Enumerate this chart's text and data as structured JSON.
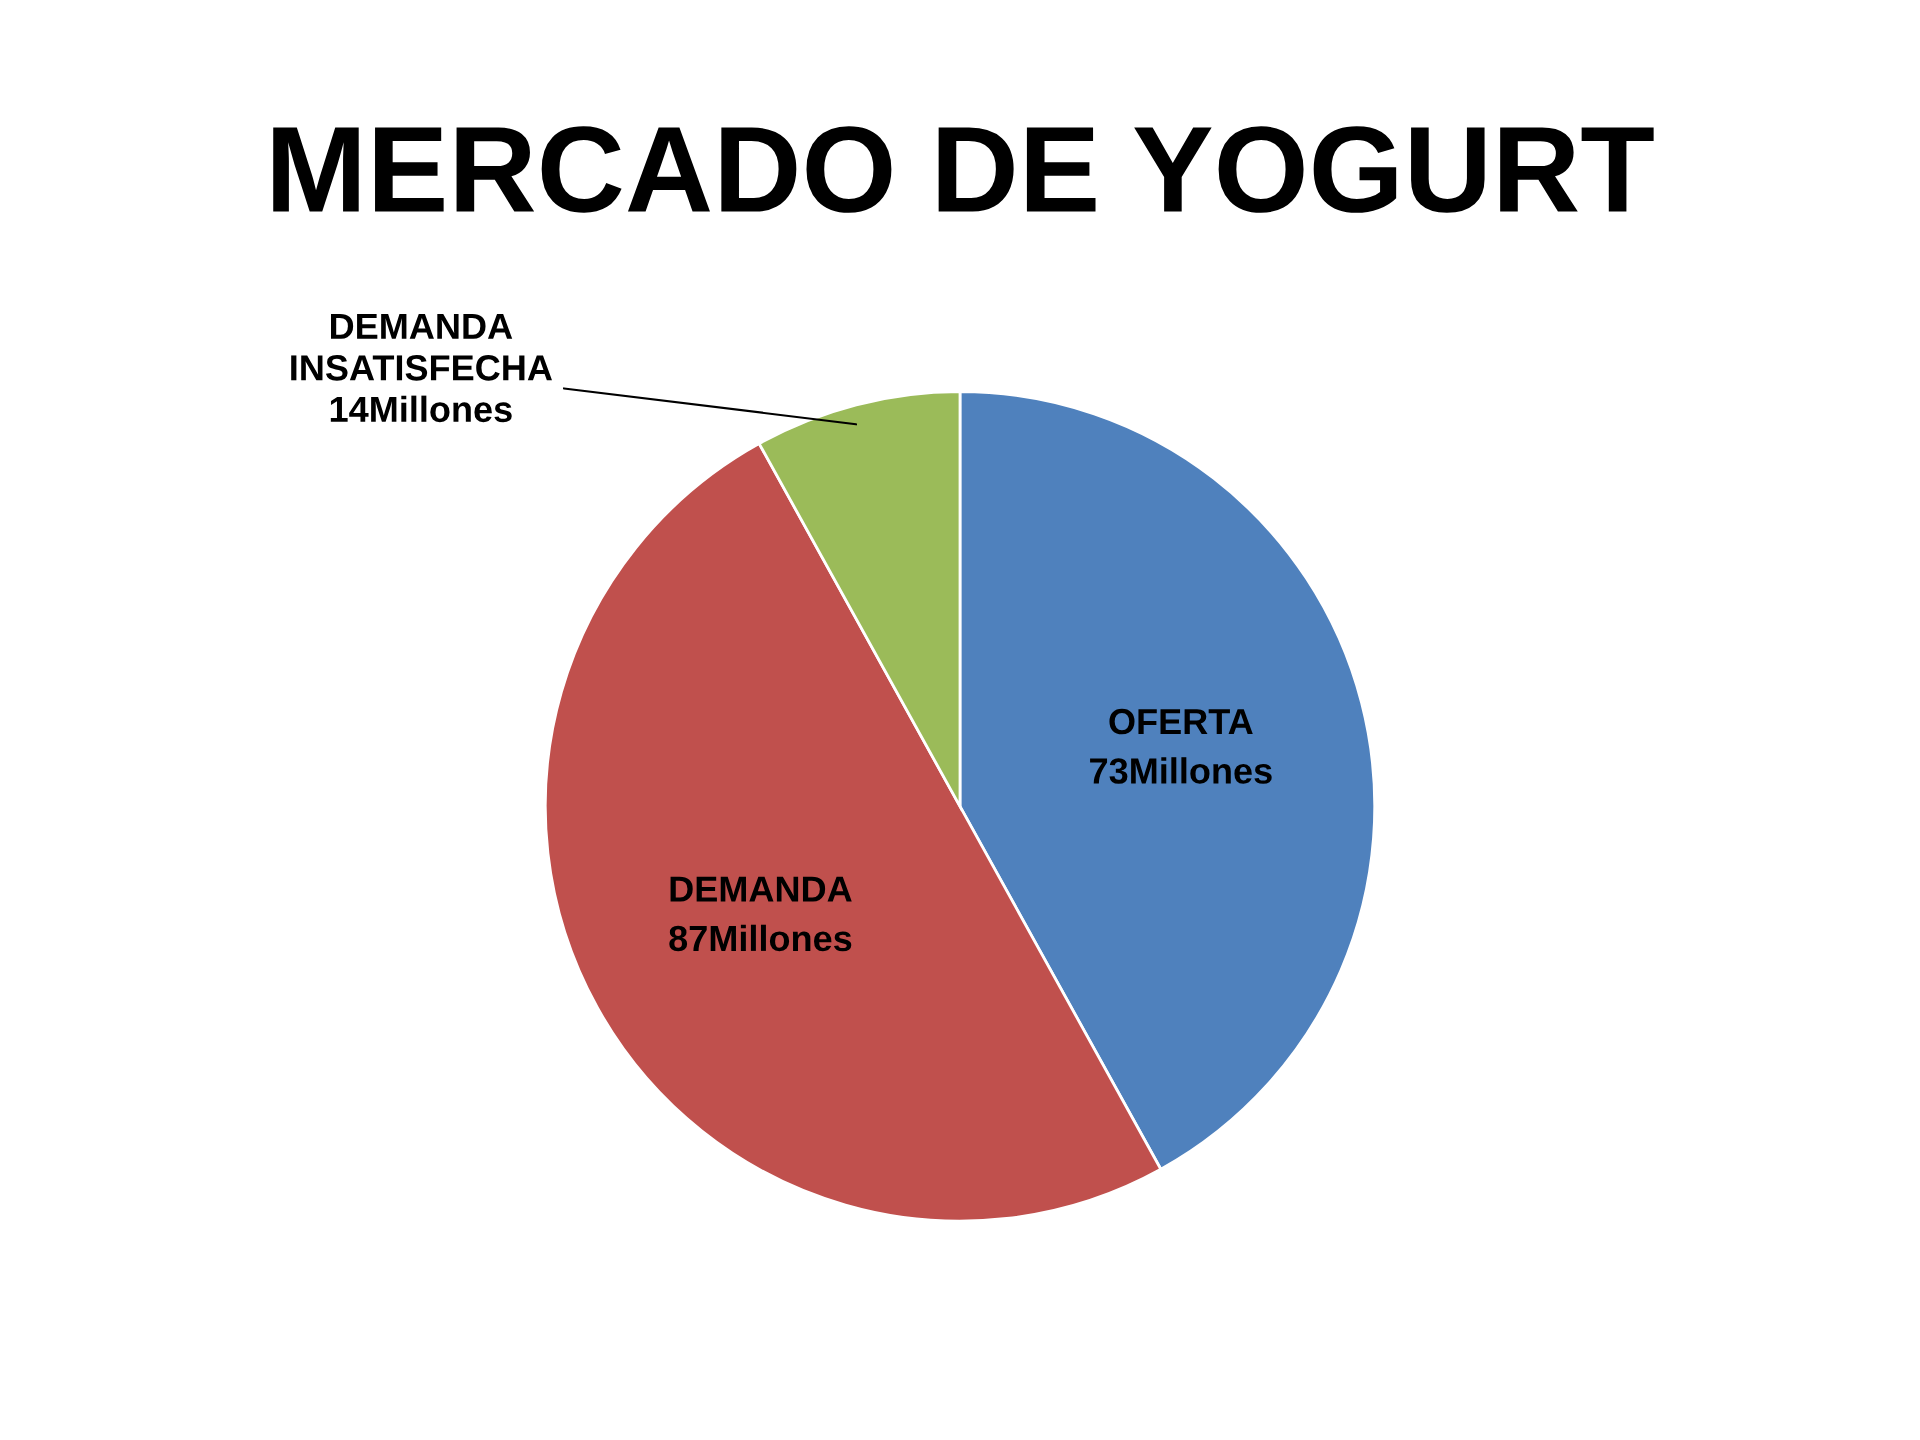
{
  "chart_data": {
    "type": "pie",
    "title": "MERCADO DE YOGURT",
    "categories": [
      "OFERTA",
      "DEMANDA",
      "DEMANDA\nINSATISFECHA"
    ],
    "values": [
      73,
      87,
      14
    ],
    "value_labels": [
      "73Millones",
      "87Millones",
      "14Millones"
    ],
    "colors": [
      "#4f81bd",
      "#c0504d",
      "#9bbb59"
    ],
    "legend": false
  }
}
